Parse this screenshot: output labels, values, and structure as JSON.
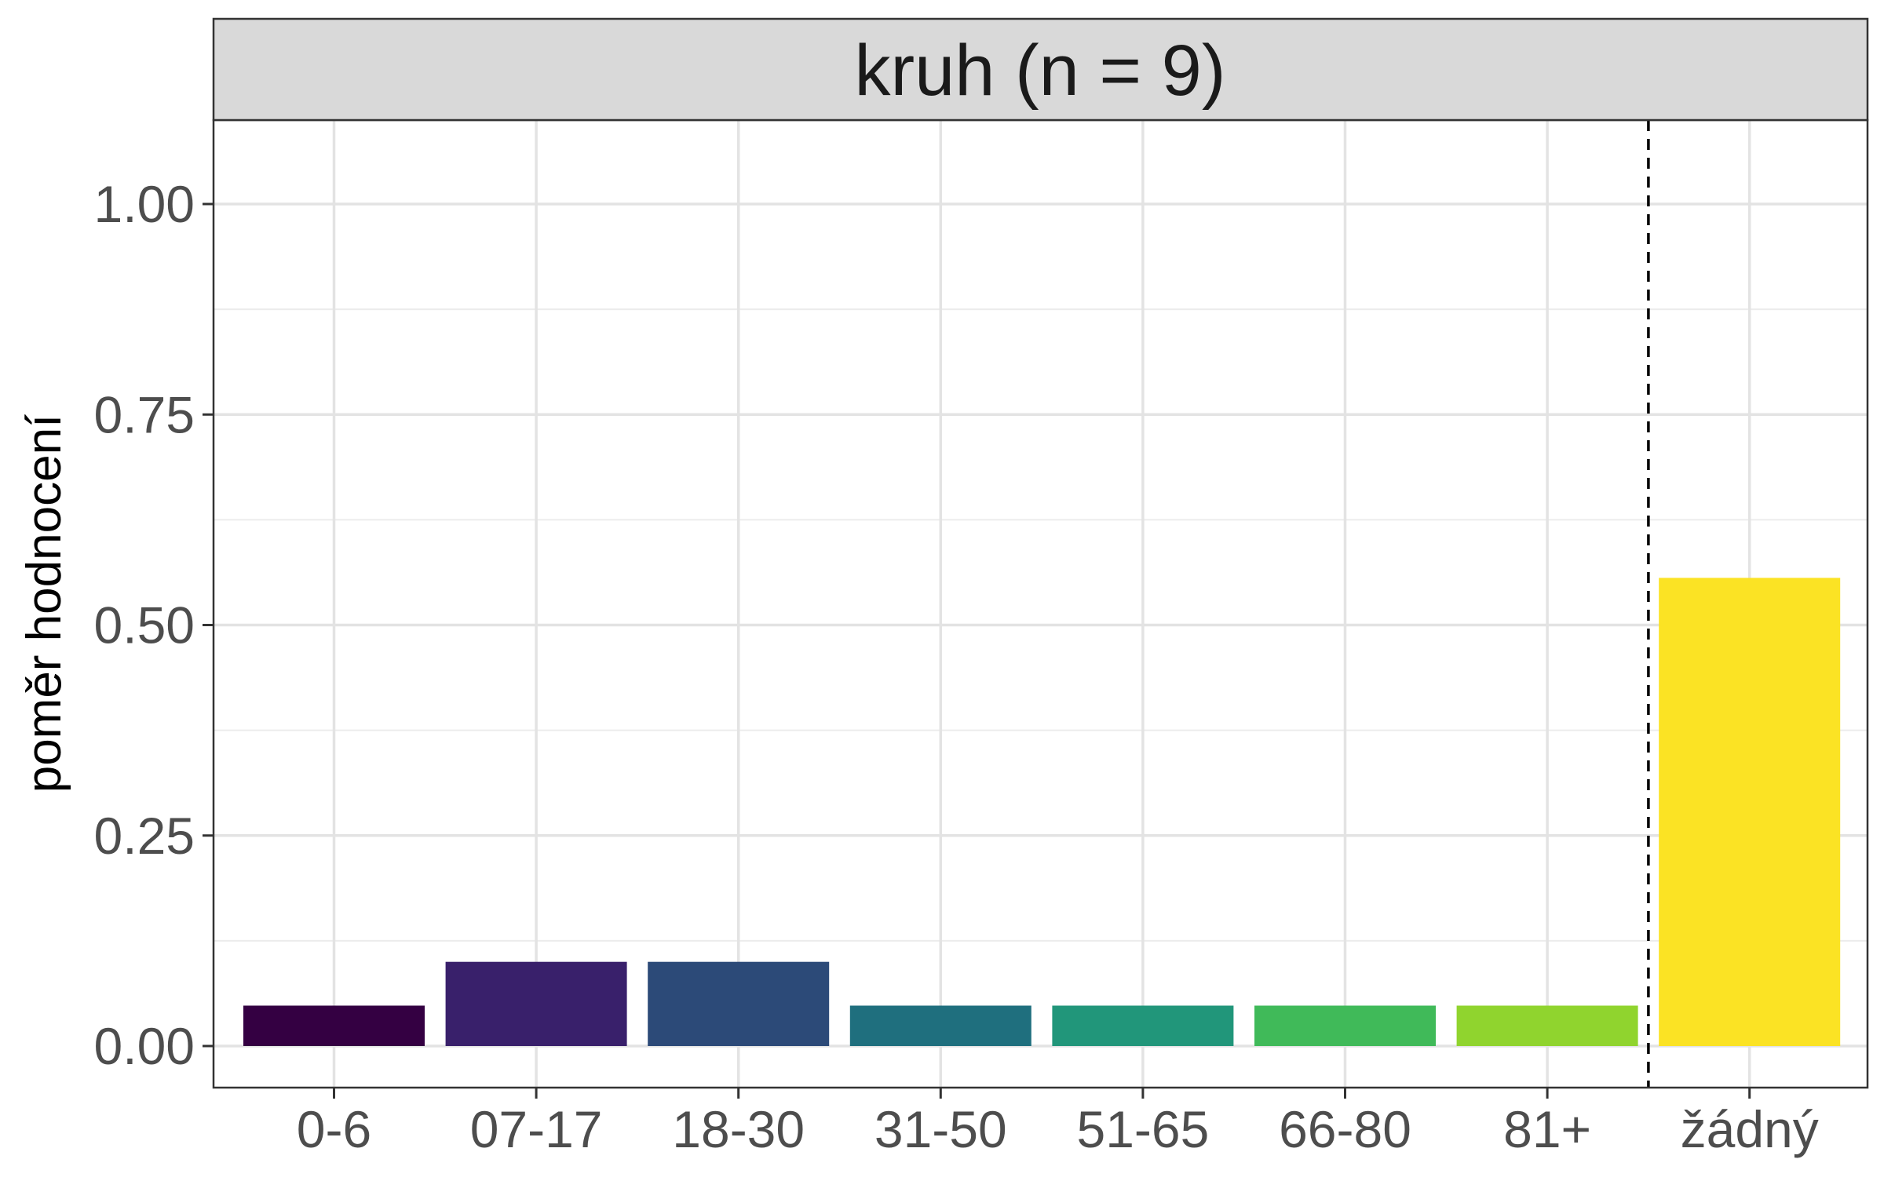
{
  "chart_data": {
    "type": "bar",
    "title": "kruh (n = 9)",
    "xlabel": "",
    "ylabel": "poměr hodnocení",
    "categories": [
      "0-6",
      "07-17",
      "18-30",
      "31-50",
      "51-65",
      "66-80",
      "81+",
      "žádný"
    ],
    "values": [
      0.048,
      0.1,
      0.1,
      0.048,
      0.048,
      0.048,
      0.048,
      0.556
    ],
    "colors": [
      "#340042",
      "#39206B",
      "#2C4A78",
      "#1F6F7E",
      "#21967A",
      "#40BA59",
      "#90D42E",
      "#FBE324"
    ],
    "ylim": [
      -0.05,
      1.1
    ],
    "y_ticks": [
      "0.00",
      "0.25",
      "0.50",
      "0.75",
      "1.00"
    ],
    "grid": true,
    "separator_line": {
      "style": "dashed",
      "between": [
        "81+",
        "žádný"
      ]
    },
    "legend": "none"
  }
}
